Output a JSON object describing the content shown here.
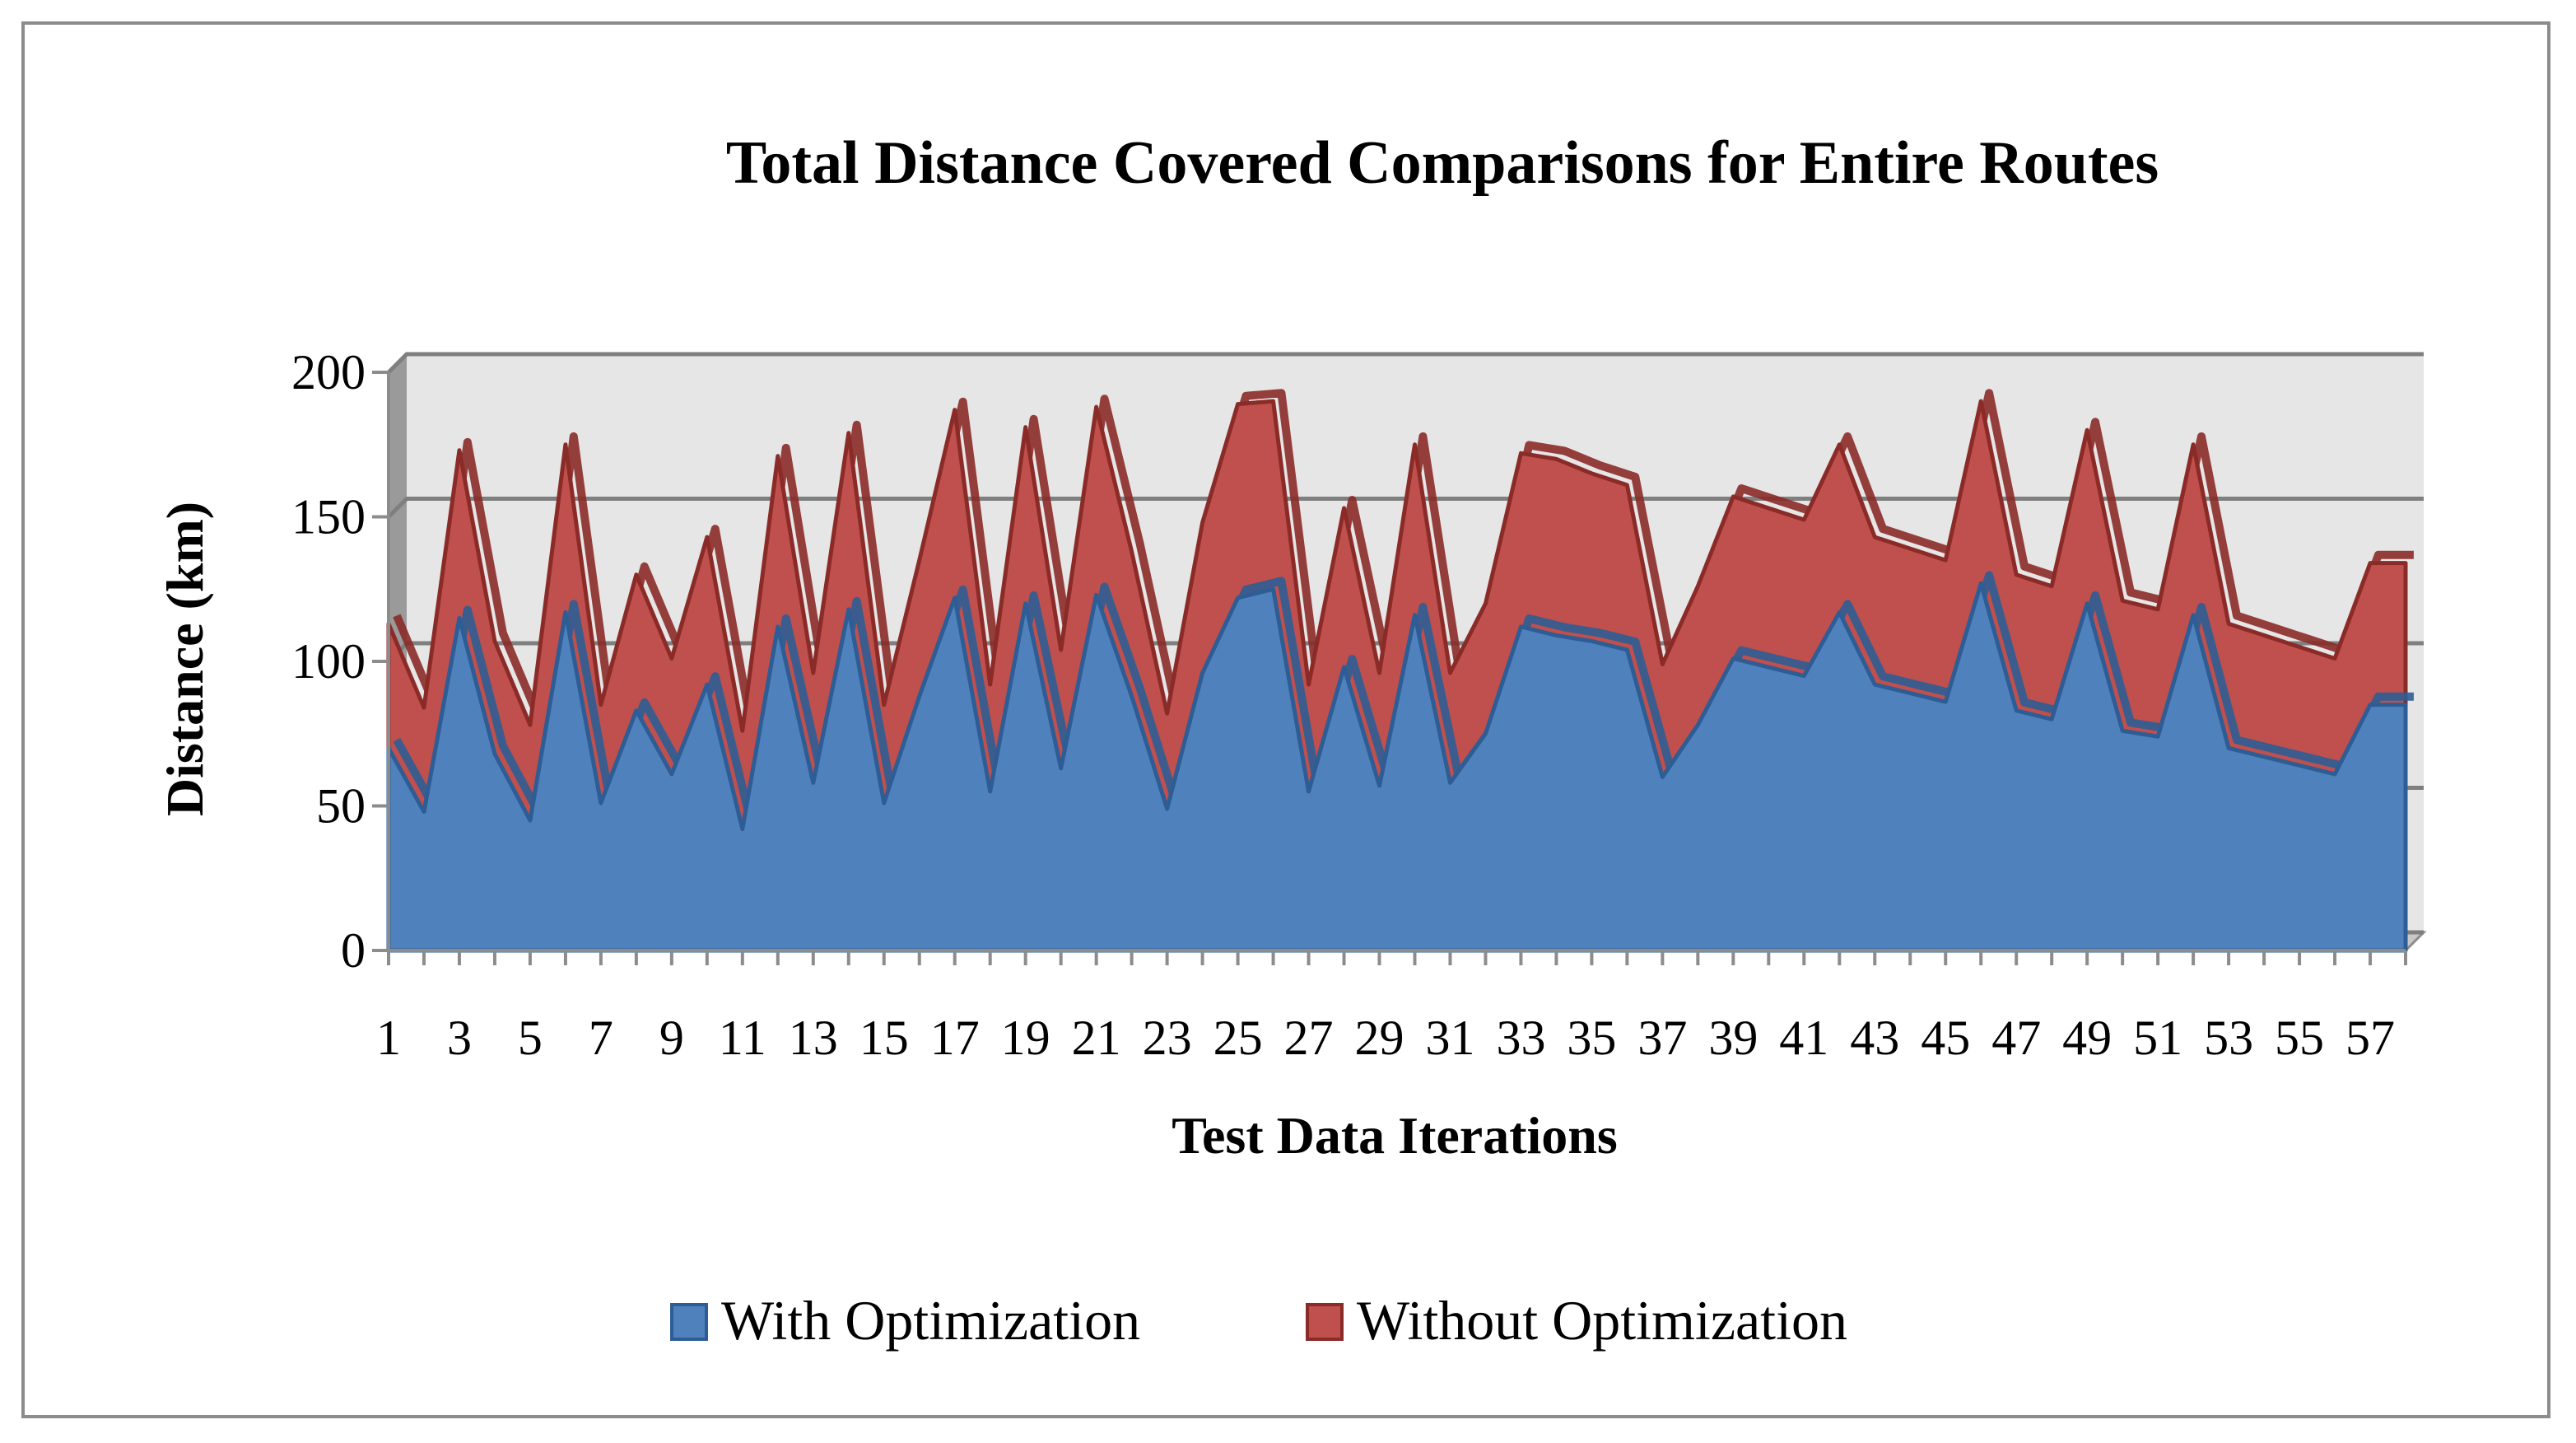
{
  "chart_data": {
    "type": "area",
    "title": "Total Distance Covered Comparisons for Entire Routes",
    "xlabel": "Test Data Iterations",
    "ylabel": "Distance (km)",
    "ylim": [
      0,
      200
    ],
    "y_ticks": [
      "0",
      "50",
      "100",
      "150",
      "200"
    ],
    "y_tick_values": [
      0,
      50,
      100,
      150,
      200
    ],
    "x": [
      1,
      2,
      3,
      4,
      5,
      6,
      7,
      8,
      9,
      10,
      11,
      12,
      13,
      14,
      15,
      16,
      17,
      18,
      19,
      20,
      21,
      22,
      23,
      24,
      25,
      26,
      27,
      28,
      29,
      30,
      31,
      32,
      33,
      34,
      35,
      36,
      37,
      38,
      39,
      40,
      41,
      42,
      43,
      44,
      45,
      46,
      47,
      48,
      49,
      50,
      51,
      52,
      53,
      54,
      55,
      56,
      57,
      58
    ],
    "x_tick_labels": [
      "1",
      "3",
      "5",
      "7",
      "9",
      "11",
      "13",
      "15",
      "17",
      "19",
      "21",
      "23",
      "25",
      "27",
      "29",
      "31",
      "33",
      "35",
      "37",
      "39",
      "41",
      "43",
      "45",
      "47",
      "49",
      "51",
      "53",
      "55",
      "57"
    ],
    "grid": true,
    "legend_position": "bottom",
    "series": [
      {
        "name": "With Optimization",
        "color": "#4f81bd",
        "edge_color": "#2e5d95",
        "values": [
          70,
          48,
          115,
          68,
          45,
          117,
          51,
          83,
          61,
          92,
          42,
          112,
          58,
          118,
          51,
          88,
          122,
          55,
          120,
          63,
          123,
          88,
          49,
          96,
          122,
          125,
          55,
          98,
          57,
          116,
          58,
          75,
          112,
          109,
          107,
          104,
          60,
          78,
          101,
          98,
          95,
          117,
          92,
          89,
          86,
          127,
          83,
          80,
          120,
          76,
          74,
          116,
          70,
          67,
          64,
          61,
          85,
          85
        ]
      },
      {
        "name": "Without Optimization",
        "color": "#c0504d",
        "edge_color": "#8b2b28",
        "values": [
          113,
          84,
          173,
          107,
          78,
          175,
          85,
          130,
          101,
          143,
          76,
          171,
          96,
          179,
          85,
          135,
          187,
          92,
          181,
          104,
          188,
          138,
          82,
          148,
          189,
          190,
          92,
          153,
          96,
          175,
          96,
          120,
          172,
          170,
          165,
          161,
          99,
          126,
          157,
          153,
          149,
          175,
          143,
          139,
          135,
          190,
          130,
          126,
          180,
          121,
          118,
          175,
          113,
          109,
          105,
          101,
          134,
          134
        ]
      }
    ]
  }
}
